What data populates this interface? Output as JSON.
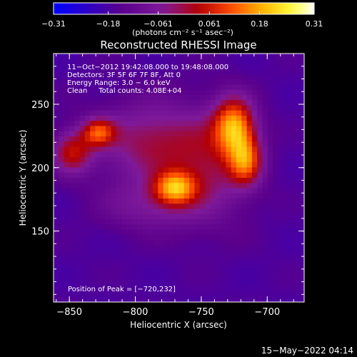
{
  "chart_data": {
    "type": "heatmap",
    "title": "Reconstructed RHESSI Image",
    "xlabel": "Heliocentric X (arcsec)",
    "ylabel": "Heliocentric Y (arcsec)",
    "xlim": [
      -862,
      -672
    ],
    "ylim": [
      94,
      290
    ],
    "xticks": [
      -850,
      -800,
      -750,
      -700
    ],
    "xtick_labels": [
      "−850",
      "−800",
      "−750",
      "−700"
    ],
    "yticks": [
      150,
      200,
      250
    ],
    "ytick_labels": [
      "150",
      "200",
      "250"
    ],
    "colorbar": {
      "range": [
        -0.31,
        0.31
      ],
      "ticks": [
        -0.31,
        -0.18,
        -0.061,
        0.061,
        0.18,
        0.31
      ],
      "tick_labels": [
        "−0.31",
        "−0.18",
        "−0.061",
        "0.061",
        "0.18",
        "0.31"
      ],
      "unit_label": "(photons cm⁻² s⁻¹ asec⁻²)"
    },
    "annotations": [
      "11−Oct−2012 19:42:08.000 to 19:48:08.000",
      "Detectors: 3F 5F 6F 7F 8F, Att 0",
      "Energy Range: 3.0 − 6.0 keV",
      "Clean     Total counts: 4.08E+04"
    ],
    "peak_label": "Position of Peak = [−720,232]",
    "sources": [
      {
        "x": -725,
        "y": 233,
        "sigma_x": 11,
        "sigma_y": 16,
        "peak": 0.31
      },
      {
        "x": -770,
        "y": 184,
        "sigma_x": 11,
        "sigma_y": 9,
        "peak": 0.26
      },
      {
        "x": -716,
        "y": 205,
        "sigma_x": 9,
        "sigma_y": 14,
        "peak": 0.24
      },
      {
        "x": -828,
        "y": 228,
        "sigma_x": 9,
        "sigma_y": 8,
        "peak": 0.22
      },
      {
        "x": -848,
        "y": 212,
        "sigma_x": 11,
        "sigma_y": 12,
        "peak": 0.2
      },
      {
        "x": -790,
        "y": 220,
        "sigma_x": 28,
        "sigma_y": 22,
        "peak": 0.16
      },
      {
        "x": -745,
        "y": 200,
        "sigma_x": 22,
        "sigma_y": 30,
        "peak": 0.14
      },
      {
        "x": -790,
        "y": 170,
        "sigma_x": 25,
        "sigma_y": 14,
        "peak": 0.1
      }
    ],
    "background_level": -0.17,
    "colormap": [
      "#0000ff",
      "#5a008c",
      "#7e1a9a",
      "#b40000",
      "#ff4a00",
      "#ffb400",
      "#ffff40",
      "#ffffff"
    ]
  },
  "footer": {
    "timestamp": "15−May−2022 04:14"
  }
}
